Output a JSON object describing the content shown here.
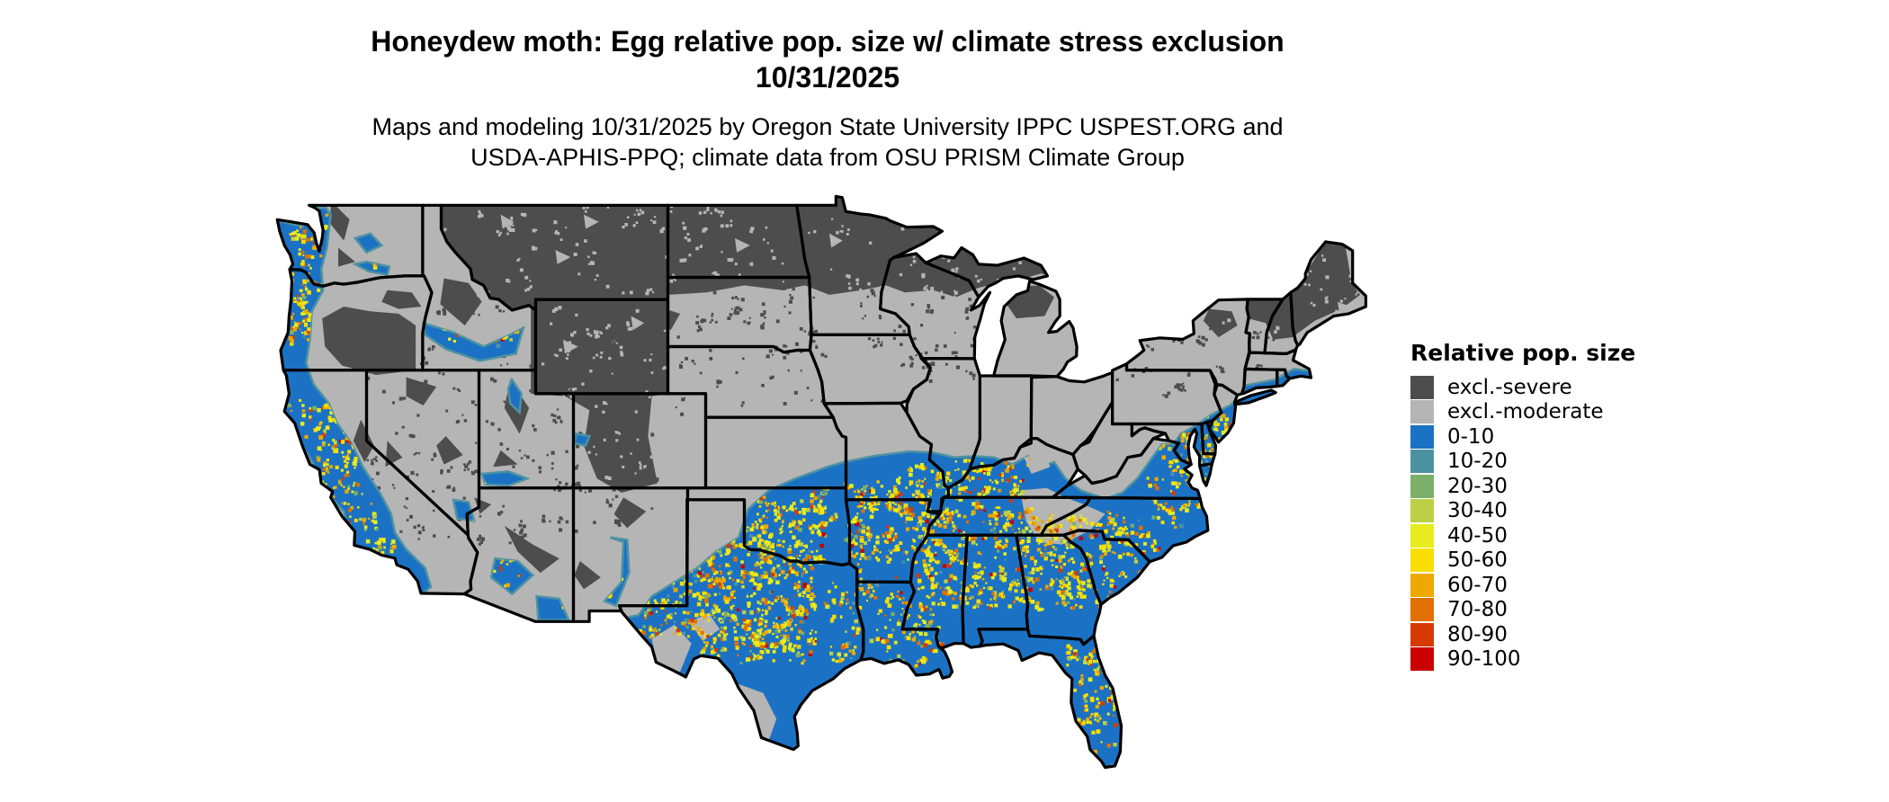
{
  "header": {
    "title_line1": "Honeydew moth: Egg relative pop. size w/ climate stress exclusion",
    "title_line2": "10/31/2025",
    "subtitle_line1": "Maps and modeling 10/31/2025 by Oregon State University IPPC USPEST.ORG and",
    "subtitle_line2": "USDA-APHIS-PPQ; climate data from OSU PRISM Climate Group"
  },
  "legend": {
    "title": "Relative pop. size",
    "items": [
      {
        "label": "excl.-severe",
        "color": "#4d4d4d"
      },
      {
        "label": "excl.-moderate",
        "color": "#b5b5b5"
      },
      {
        "label": "0-10",
        "color": "#1b72c4"
      },
      {
        "label": "10-20",
        "color": "#4d92a2"
      },
      {
        "label": "20-30",
        "color": "#7cb06a"
      },
      {
        "label": "30-40",
        "color": "#bccf45"
      },
      {
        "label": "40-50",
        "color": "#e7ec1f"
      },
      {
        "label": "50-60",
        "color": "#f8de00"
      },
      {
        "label": "60-70",
        "color": "#eea800"
      },
      {
        "label": "70-80",
        "color": "#e17000"
      },
      {
        "label": "80-90",
        "color": "#d63a00"
      },
      {
        "label": "90-100",
        "color": "#cb0000"
      }
    ]
  },
  "map": {
    "type": "choropleth raster map",
    "region": "Continental United States",
    "border_color": "#000000",
    "water_color": "#ffffff"
  }
}
